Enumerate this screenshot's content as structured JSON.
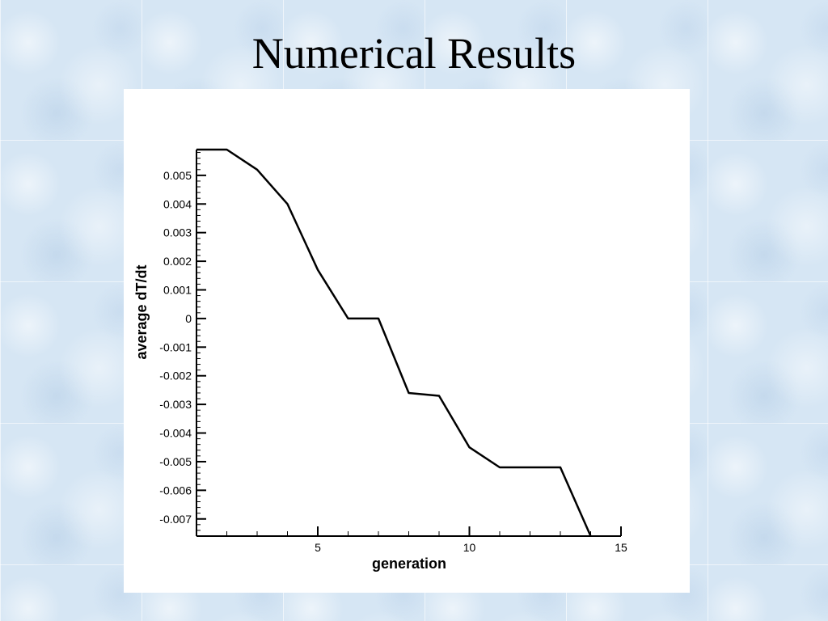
{
  "slide": {
    "title": "Numerical Results"
  },
  "chart_data": {
    "type": "line",
    "title": "",
    "xlabel": "generation",
    "ylabel": "average dT/dt",
    "xlim": [
      1,
      15
    ],
    "ylim": [
      -0.0076,
      0.0059
    ],
    "x_major_ticks": [
      5,
      10,
      15
    ],
    "x_tick_labels": [
      "5",
      "10",
      "15"
    ],
    "y_major_ticks": [
      0.005,
      0.004,
      0.003,
      0.002,
      0.001,
      0,
      -0.001,
      -0.002,
      -0.003,
      -0.004,
      -0.005,
      -0.006,
      -0.007
    ],
    "y_tick_labels": [
      "0.005",
      "0.004",
      "0.003",
      "0.002",
      "0.001",
      "0",
      "-0.001",
      "-0.002",
      "-0.003",
      "-0.004",
      "-0.005",
      "-0.006",
      "-0.007"
    ],
    "grid": false,
    "series": [
      {
        "color": "#000000",
        "x": [
          1,
          2,
          3,
          4,
          5,
          6,
          7,
          8,
          9,
          10,
          11,
          12,
          13,
          14
        ],
        "y": [
          0.0059,
          0.0059,
          0.0052,
          0.004,
          0.0017,
          0.0,
          0.0,
          -0.0026,
          -0.0027,
          -0.0045,
          -0.0052,
          -0.0052,
          -0.0052,
          -0.0076
        ]
      }
    ]
  }
}
